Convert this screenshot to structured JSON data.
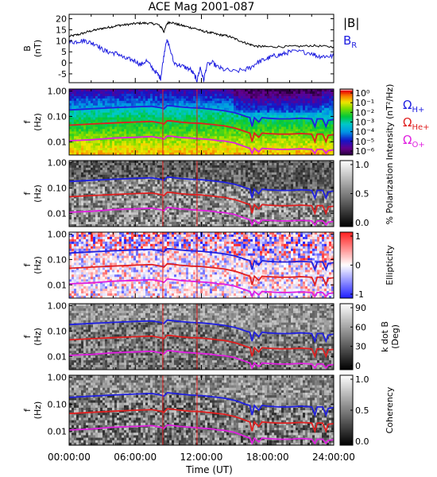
{
  "chart_data": {
    "title": "ACE Mag 2001-087",
    "type": "line",
    "xlabel": "Time (UT)",
    "x_ticks": [
      "00:00:00",
      "06:00:00",
      "12:00:00",
      "18:00:00",
      "24:00:00"
    ],
    "xlim_hours": [
      0,
      24
    ],
    "panels": [
      {
        "id": "b_field",
        "type": "line",
        "ylabel_line1": "B",
        "ylabel_line2": "(nT)",
        "ylim": [
          -9,
          22
        ],
        "y_ticks": [
          "20",
          "15",
          "10",
          "5",
          "0",
          "-5"
        ],
        "y_tick_values": [
          20,
          15,
          10,
          5,
          0,
          -5
        ],
        "legend": [
          {
            "label": "|B|",
            "color": "#000000"
          },
          {
            "label_main": "B",
            "label_sub": "R",
            "color": "#2020e0"
          }
        ],
        "series": [
          {
            "name": "|B|",
            "color": "#000000",
            "points": [
              [
                0,
                12
              ],
              [
                0.5,
                12.5
              ],
              [
                1,
                13
              ],
              [
                1.5,
                13.8
              ],
              [
                2,
                14.5
              ],
              [
                2.5,
                15
              ],
              [
                3,
                15.6
              ],
              [
                3.5,
                16
              ],
              [
                4,
                16.5
              ],
              [
                4.5,
                17
              ],
              [
                5,
                17.2
              ],
              [
                5.5,
                17.5
              ],
              [
                6,
                17.8
              ],
              [
                6.5,
                18
              ],
              [
                7,
                18
              ],
              [
                7.5,
                17.8
              ],
              [
                8,
                17.5
              ],
              [
                8.4,
                16
              ],
              [
                8.6,
                14
              ],
              [
                8.9,
                18
              ],
              [
                9.2,
                18.5
              ],
              [
                9.6,
                17.8
              ],
              [
                10,
                17.2
              ],
              [
                10.5,
                16.6
              ],
              [
                11,
                16
              ],
              [
                11.5,
                15.5
              ],
              [
                12,
                14.5
              ],
              [
                12.5,
                14
              ],
              [
                13,
                13.5
              ],
              [
                13.5,
                12.8
              ],
              [
                14,
                12.5
              ],
              [
                14.5,
                12
              ],
              [
                15,
                11
              ],
              [
                15.5,
                10
              ],
              [
                16,
                9
              ],
              [
                16.5,
                8.2
              ],
              [
                17,
                7.5
              ],
              [
                17.5,
                7.4
              ],
              [
                18,
                7.3
              ],
              [
                19,
                7.3
              ],
              [
                20,
                7.4
              ],
              [
                21,
                7.5
              ],
              [
                22,
                7.8
              ],
              [
                23,
                7.5
              ],
              [
                24,
                7.2
              ]
            ]
          },
          {
            "name": "B_R",
            "color": "#2020e0",
            "points": [
              [
                0,
                9.5
              ],
              [
                0.5,
                9.5
              ],
              [
                1,
                10
              ],
              [
                1.5,
                10
              ],
              [
                2,
                9
              ],
              [
                2.5,
                8.5
              ],
              [
                3,
                6
              ],
              [
                3.5,
                5
              ],
              [
                4,
                4.5
              ],
              [
                4.5,
                4
              ],
              [
                5,
                2
              ],
              [
                5.5,
                1.5
              ],
              [
                6,
                1
              ],
              [
                6.5,
                -1
              ],
              [
                7,
                1
              ],
              [
                7.5,
                -2
              ],
              [
                8,
                -5
              ],
              [
                8.3,
                -7
              ],
              [
                8.5,
                0
              ],
              [
                8.8,
                10
              ],
              [
                9,
                9
              ],
              [
                9.5,
                0
              ],
              [
                10,
                -1
              ],
              [
                10.5,
                -2
              ],
              [
                11,
                -3
              ],
              [
                11.4,
                -6
              ],
              [
                11.6,
                -8
              ],
              [
                11.9,
                -2
              ],
              [
                12.2,
                -8
              ],
              [
                12.5,
                -1
              ],
              [
                13,
                0
              ],
              [
                13.5,
                -2
              ],
              [
                14,
                -3
              ],
              [
                15,
                -4
              ],
              [
                16,
                -3
              ],
              [
                16.5,
                -2
              ],
              [
                17,
                0
              ],
              [
                17.5,
                1
              ],
              [
                18,
                2
              ],
              [
                18.5,
                3
              ],
              [
                19,
                3.5
              ],
              [
                19.5,
                4
              ],
              [
                20,
                5
              ],
              [
                21,
                5
              ],
              [
                22,
                4.5
              ],
              [
                22.5,
                3
              ],
              [
                23,
                3
              ],
              [
                23.5,
                3
              ],
              [
                24,
                3
              ]
            ]
          }
        ]
      },
      {
        "id": "intensity",
        "type": "heatmap",
        "ylabel_line1": "f",
        "ylabel_line2": "(Hz)",
        "y_scale": "log",
        "ylim": [
          0.003,
          1.2
        ],
        "y_ticks": [
          "1.00",
          "0.10",
          "0.01"
        ],
        "y_tick_values": [
          1,
          0.1,
          0.01
        ],
        "colorbar": {
          "label": "Intensity (nT²/Hz)",
          "ticks": [
            "10⁰",
            "10⁻¹",
            "10⁻²",
            "10⁻³",
            "10⁻⁴",
            "10⁻⁵",
            "10⁻⁶"
          ],
          "range": [
            1e-06,
            1
          ],
          "colormap": "rainbow"
        },
        "legend": [
          {
            "label_main": "Ω",
            "label_sub": "H+",
            "color": "#2020e0"
          },
          {
            "label_main": "Ω",
            "label_sub": "He+",
            "color": "#e02020"
          },
          {
            "label_main": "Ω",
            "label_sub": "O+",
            "color": "#e020e0"
          }
        ]
      },
      {
        "id": "polarization",
        "type": "heatmap",
        "ylabel_line1": "f",
        "ylabel_line2": "(Hz)",
        "y_scale": "log",
        "ylim": [
          0.003,
          1.2
        ],
        "y_ticks": [
          "1.00",
          "0.10",
          "0.01"
        ],
        "y_tick_values": [
          1,
          0.1,
          0.01
        ],
        "colorbar": {
          "label": "% Polarization",
          "ticks": [
            "1.0",
            "0.5",
            "0.0"
          ],
          "range": [
            0,
            1
          ],
          "colormap": "gray"
        }
      },
      {
        "id": "ellipticity",
        "type": "heatmap",
        "ylabel_line1": "f",
        "ylabel_line2": "(Hz)",
        "y_scale": "log",
        "ylim": [
          0.003,
          1.2
        ],
        "y_ticks": [
          "1.00",
          "0.10",
          "0.01"
        ],
        "y_tick_values": [
          1,
          0.1,
          0.01
        ],
        "colorbar": {
          "label": "Ellipticity",
          "ticks": [
            "1",
            "0",
            "-1"
          ],
          "range": [
            -1,
            1
          ],
          "colormap": "blue-white-red"
        }
      },
      {
        "id": "kdotb",
        "type": "heatmap",
        "ylabel_line1": "f",
        "ylabel_line2": "(Hz)",
        "y_scale": "log",
        "ylim": [
          0.003,
          1.2
        ],
        "y_ticks": [
          "1.00",
          "0.10",
          "0.01"
        ],
        "y_tick_values": [
          1,
          0.1,
          0.01
        ],
        "colorbar": {
          "label_line1": "k dot B",
          "label_line2": "(Deg)",
          "ticks": [
            "90",
            "60",
            "30",
            "0"
          ],
          "range": [
            0,
            90
          ],
          "colormap": "gray"
        }
      },
      {
        "id": "coherency",
        "type": "heatmap",
        "ylabel_line1": "f",
        "ylabel_line2": "(Hz)",
        "y_scale": "log",
        "ylim": [
          0.003,
          1.2
        ],
        "y_ticks": [
          "1.00",
          "0.10",
          "0.01"
        ],
        "y_tick_values": [
          1,
          0.1,
          0.01
        ],
        "colorbar": {
          "label": "Coherency",
          "ticks": [
            "1.0",
            "0.5",
            "0.0"
          ],
          "range": [
            0,
            1
          ],
          "colormap": "gray"
        }
      }
    ],
    "gyrofrequency_lines": [
      {
        "name": "Ω_H+",
        "color": "#2020e0",
        "points": [
          [
            0,
            0.18
          ],
          [
            2,
            0.2
          ],
          [
            4,
            0.22
          ],
          [
            6,
            0.24
          ],
          [
            7.5,
            0.25
          ],
          [
            8.3,
            0.22
          ],
          [
            8.6,
            0.2
          ],
          [
            8.9,
            0.27
          ],
          [
            9.3,
            0.26
          ],
          [
            10,
            0.24
          ],
          [
            11,
            0.22
          ],
          [
            12,
            0.21
          ],
          [
            12.5,
            0.2
          ],
          [
            13,
            0.19
          ],
          [
            13.5,
            0.18
          ],
          [
            14,
            0.17
          ],
          [
            15,
            0.14
          ],
          [
            15.5,
            0.12
          ],
          [
            16,
            0.1
          ],
          [
            16.4,
            0.09
          ],
          [
            16.6,
            0.04
          ],
          [
            16.8,
            0.09
          ],
          [
            17.2,
            0.06
          ],
          [
            17.5,
            0.09
          ],
          [
            18,
            0.085
          ],
          [
            19,
            0.08
          ],
          [
            20,
            0.08
          ],
          [
            21,
            0.085
          ],
          [
            22,
            0.08
          ],
          [
            22.3,
            0.04
          ],
          [
            22.5,
            0.08
          ],
          [
            23,
            0.08
          ],
          [
            23.3,
            0.04
          ],
          [
            23.5,
            0.07
          ],
          [
            24,
            0.075
          ]
        ]
      },
      {
        "name": "Ω_He+",
        "color": "#e02020",
        "points": [
          [
            0,
            0.045
          ],
          [
            2,
            0.05
          ],
          [
            4,
            0.055
          ],
          [
            6,
            0.06
          ],
          [
            7.5,
            0.063
          ],
          [
            8.3,
            0.055
          ],
          [
            8.6,
            0.05
          ],
          [
            8.9,
            0.068
          ],
          [
            9.3,
            0.066
          ],
          [
            10,
            0.06
          ],
          [
            11,
            0.055
          ],
          [
            12,
            0.053
          ],
          [
            12.5,
            0.05
          ],
          [
            13,
            0.048
          ],
          [
            13.5,
            0.045
          ],
          [
            14,
            0.043
          ],
          [
            15,
            0.035
          ],
          [
            15.5,
            0.03
          ],
          [
            16,
            0.025
          ],
          [
            16.4,
            0.022
          ],
          [
            16.6,
            0.01
          ],
          [
            16.8,
            0.022
          ],
          [
            17.2,
            0.015
          ],
          [
            17.5,
            0.022
          ],
          [
            18,
            0.021
          ],
          [
            19,
            0.02
          ],
          [
            20,
            0.02
          ],
          [
            21,
            0.021
          ],
          [
            22,
            0.02
          ],
          [
            22.3,
            0.01
          ],
          [
            22.5,
            0.02
          ],
          [
            23,
            0.02
          ],
          [
            23.3,
            0.01
          ],
          [
            23.5,
            0.018
          ],
          [
            24,
            0.019
          ]
        ]
      },
      {
        "name": "Ω_O+",
        "color": "#e020e0",
        "points": [
          [
            0,
            0.011
          ],
          [
            2,
            0.012
          ],
          [
            4,
            0.014
          ],
          [
            6,
            0.015
          ],
          [
            7.5,
            0.016
          ],
          [
            8.3,
            0.014
          ],
          [
            8.6,
            0.0125
          ],
          [
            8.9,
            0.017
          ],
          [
            9.3,
            0.0165
          ],
          [
            10,
            0.015
          ],
          [
            11,
            0.014
          ],
          [
            12,
            0.013
          ],
          [
            12.5,
            0.0125
          ],
          [
            13,
            0.012
          ],
          [
            13.5,
            0.011
          ],
          [
            14,
            0.0108
          ],
          [
            15,
            0.009
          ],
          [
            15.5,
            0.0075
          ],
          [
            16,
            0.0063
          ],
          [
            16.4,
            0.0055
          ],
          [
            16.6,
            0.0035
          ],
          [
            16.8,
            0.0055
          ],
          [
            17.2,
            0.004
          ],
          [
            17.5,
            0.0055
          ],
          [
            18,
            0.0053
          ],
          [
            19,
            0.005
          ],
          [
            20,
            0.005
          ],
          [
            21,
            0.0053
          ],
          [
            22,
            0.005
          ],
          [
            22.3,
            0.0035
          ],
          [
            22.5,
            0.005
          ],
          [
            23,
            0.005
          ],
          [
            23.3,
            0.0035
          ],
          [
            23.5,
            0.0045
          ],
          [
            24,
            0.0048
          ]
        ]
      }
    ],
    "vertical_markers_hours": [
      8.5,
      11.6
    ]
  }
}
